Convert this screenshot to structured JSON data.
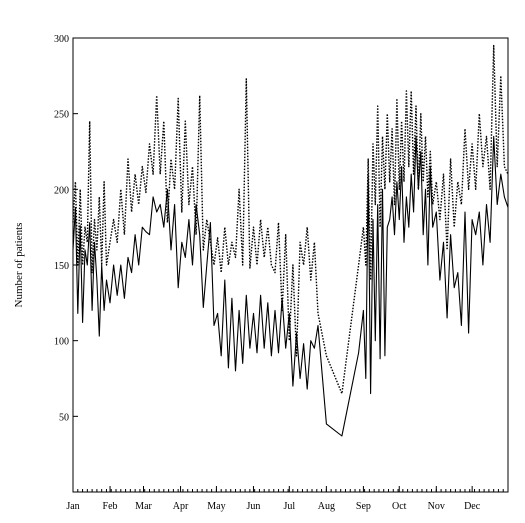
{
  "chart_data": {
    "type": "line",
    "title": "",
    "xlabel": "",
    "ylabel": "Number of patients",
    "ylim": [
      0,
      300
    ],
    "y_ticks": [
      50,
      100,
      150,
      200,
      250,
      300
    ],
    "x_ticks": [
      "Jan",
      "Feb",
      "Mar",
      "Apr",
      "May",
      "Jun",
      "Jul",
      "Aug",
      "Sep",
      "Oct",
      "Nov",
      "Dec"
    ],
    "grid": false,
    "legend": "none",
    "series": [
      {
        "style": "solid",
        "color": "#000000",
        "points": [
          [
            "Jan 1",
            160
          ],
          [
            "Jan 3",
            188
          ],
          [
            "Jan 5",
            118
          ],
          [
            "Jan 7",
            176
          ],
          [
            "Jan 9",
            112
          ],
          [
            "Jan 11",
            160
          ],
          [
            "Jan 13",
            150
          ],
          [
            "Jan 15",
            178
          ],
          [
            "Jan 17",
            120
          ],
          [
            "Jan 19",
            165
          ],
          [
            "Jan 21",
            140
          ],
          [
            "Jan 23",
            103
          ],
          [
            "Jan 25",
            150
          ],
          [
            "Jan 27",
            120
          ],
          [
            "Jan 29",
            140
          ],
          [
            "Feb 1",
            125
          ],
          [
            "Feb 4",
            150
          ],
          [
            "Feb 7",
            130
          ],
          [
            "Feb 10",
            150
          ],
          [
            "Feb 13",
            128
          ],
          [
            "Feb 16",
            155
          ],
          [
            "Feb 19",
            145
          ],
          [
            "Feb 22",
            170
          ],
          [
            "Feb 25",
            150
          ],
          [
            "Feb 28",
            175
          ],
          [
            "Mar 3",
            172
          ],
          [
            "Mar 6",
            170
          ],
          [
            "Mar 9",
            195
          ],
          [
            "Mar 12",
            185
          ],
          [
            "Mar 15",
            190
          ],
          [
            "Mar 18",
            175
          ],
          [
            "Mar 21",
            200
          ],
          [
            "Mar 24",
            160
          ],
          [
            "Mar 27",
            190
          ],
          [
            "Mar 30",
            135
          ],
          [
            "Apr 2",
            165
          ],
          [
            "Apr 5",
            155
          ],
          [
            "Apr 8",
            180
          ],
          [
            "Apr 11",
            150
          ],
          [
            "Apr 14",
            190
          ],
          [
            "Apr 17",
            170
          ],
          [
            "Apr 20",
            122
          ],
          [
            "Apr 23",
            150
          ],
          [
            "Apr 26",
            178
          ],
          [
            "Apr 29",
            110
          ],
          [
            "May 2",
            118
          ],
          [
            "May 5",
            90
          ],
          [
            "May 8",
            140
          ],
          [
            "May 11",
            82
          ],
          [
            "May 14",
            128
          ],
          [
            "May 17",
            80
          ],
          [
            "May 20",
            120
          ],
          [
            "May 23",
            85
          ],
          [
            "May 26",
            130
          ],
          [
            "May 29",
            95
          ],
          [
            "Jun 1",
            118
          ],
          [
            "Jun 4",
            92
          ],
          [
            "Jun 7",
            130
          ],
          [
            "Jun 10",
            95
          ],
          [
            "Jun 13",
            125
          ],
          [
            "Jun 16",
            90
          ],
          [
            "Jun 19",
            120
          ],
          [
            "Jun 22",
            92
          ],
          [
            "Jun 25",
            128
          ],
          [
            "Jun 28",
            95
          ],
          [
            "Jul 1",
            118
          ],
          [
            "Jul 4",
            70
          ],
          [
            "Jul 7",
            105
          ],
          [
            "Jul 10",
            75
          ],
          [
            "Jul 13",
            98
          ],
          [
            "Jul 16",
            68
          ],
          [
            "Jul 19",
            100
          ],
          [
            "Jul 22",
            95
          ],
          [
            "Jul 25",
            110
          ],
          [
            "Aug 1",
            45
          ],
          [
            "Aug 14",
            37
          ],
          [
            "Aug 28",
            92
          ],
          [
            "Sep 1",
            120
          ],
          [
            "Sep 3",
            75
          ],
          [
            "Sep 5",
            210
          ],
          [
            "Sep 7",
            65
          ],
          [
            "Sep 9",
            180
          ],
          [
            "Sep 11",
            100
          ],
          [
            "Sep 13",
            190
          ],
          [
            "Sep 15",
            88
          ],
          [
            "Sep 17",
            200
          ],
          [
            "Sep 19",
            90
          ],
          [
            "Sep 21",
            175
          ],
          [
            "Sep 23",
            180
          ],
          [
            "Sep 25",
            195
          ],
          [
            "Sep 27",
            170
          ],
          [
            "Sep 29",
            205
          ],
          [
            "Oct 1",
            180
          ],
          [
            "Oct 3",
            215
          ],
          [
            "Oct 5",
            165
          ],
          [
            "Oct 7",
            195
          ],
          [
            "Oct 9",
            175
          ],
          [
            "Oct 11",
            210
          ],
          [
            "Oct 13",
            185
          ],
          [
            "Oct 15",
            235
          ],
          [
            "Oct 17",
            200
          ],
          [
            "Oct 19",
            225
          ],
          [
            "Oct 21",
            170
          ],
          [
            "Oct 23",
            200
          ],
          [
            "Oct 25",
            150
          ],
          [
            "Oct 27",
            215
          ],
          [
            "Oct 29",
            175
          ],
          [
            "Nov 1",
            185
          ],
          [
            "Nov 4",
            140
          ],
          [
            "Nov 7",
            165
          ],
          [
            "Nov 10",
            115
          ],
          [
            "Nov 13",
            170
          ],
          [
            "Nov 16",
            135
          ],
          [
            "Nov 19",
            145
          ],
          [
            "Nov 22",
            110
          ],
          [
            "Nov 25",
            185
          ],
          [
            "Nov 28",
            105
          ],
          [
            "Dec 1",
            180
          ],
          [
            "Dec 4",
            170
          ],
          [
            "Dec 7",
            185
          ],
          [
            "Dec 10",
            150
          ],
          [
            "Dec 13",
            190
          ],
          [
            "Dec 16",
            165
          ],
          [
            "Dec 19",
            235
          ],
          [
            "Dec 22",
            190
          ],
          [
            "Dec 25",
            210
          ],
          [
            "Dec 28",
            195
          ],
          [
            "Dec 31",
            188
          ]
        ]
      },
      {
        "style": "dotted",
        "color": "#000000",
        "points": [
          [
            "Jan 1",
            178
          ],
          [
            "Jan 3",
            205
          ],
          [
            "Jan 5",
            150
          ],
          [
            "Jan 7",
            200
          ],
          [
            "Jan 9",
            150
          ],
          [
            "Jan 11",
            175
          ],
          [
            "Jan 13",
            165
          ],
          [
            "Jan 15",
            245
          ],
          [
            "Jan 17",
            145
          ],
          [
            "Jan 19",
            180
          ],
          [
            "Jan 21",
            160
          ],
          [
            "Jan 23",
            195
          ],
          [
            "Jan 25",
            150
          ],
          [
            "Jan 27",
            205
          ],
          [
            "Jan 29",
            150
          ],
          [
            "Feb 1",
            165
          ],
          [
            "Feb 4",
            180
          ],
          [
            "Feb 7",
            165
          ],
          [
            "Feb 10",
            200
          ],
          [
            "Feb 13",
            170
          ],
          [
            "Feb 16",
            220
          ],
          [
            "Feb 19",
            185
          ],
          [
            "Feb 22",
            210
          ],
          [
            "Feb 25",
            190
          ],
          [
            "Feb 28",
            215
          ],
          [
            "Mar 3",
            198
          ],
          [
            "Mar 6",
            230
          ],
          [
            "Mar 9",
            210
          ],
          [
            "Mar 12",
            262
          ],
          [
            "Mar 15",
            210
          ],
          [
            "Mar 18",
            245
          ],
          [
            "Mar 21",
            178
          ],
          [
            "Mar 24",
            220
          ],
          [
            "Mar 27",
            200
          ],
          [
            "Mar 30",
            260
          ],
          [
            "Apr 2",
            185
          ],
          [
            "Apr 5",
            245
          ],
          [
            "Apr 8",
            190
          ],
          [
            "Apr 11",
            215
          ],
          [
            "Apr 14",
            170
          ],
          [
            "Apr 17",
            262
          ],
          [
            "Apr 20",
            160
          ],
          [
            "Apr 23",
            180
          ],
          [
            "Apr 26",
            165
          ],
          [
            "Apr 29",
            150
          ],
          [
            "May 2",
            168
          ],
          [
            "May 5",
            145
          ],
          [
            "May 8",
            175
          ],
          [
            "May 11",
            150
          ],
          [
            "May 14",
            165
          ],
          [
            "May 17",
            155
          ],
          [
            "May 20",
            200
          ],
          [
            "May 23",
            150
          ],
          [
            "May 26",
            273
          ],
          [
            "May 29",
            148
          ],
          [
            "Jun 1",
            175
          ],
          [
            "Jun 4",
            150
          ],
          [
            "Jun 7",
            180
          ],
          [
            "Jun 10",
            155
          ],
          [
            "Jun 13",
            175
          ],
          [
            "Jun 16",
            150
          ],
          [
            "Jun 19",
            145
          ],
          [
            "Jun 22",
            178
          ],
          [
            "Jun 25",
            120
          ],
          [
            "Jun 28",
            170
          ],
          [
            "Jul 1",
            100
          ],
          [
            "Jul 4",
            150
          ],
          [
            "Jul 7",
            90
          ],
          [
            "Jul 10",
            165
          ],
          [
            "Jul 13",
            150
          ],
          [
            "Jul 16",
            175
          ],
          [
            "Jul 19",
            140
          ],
          [
            "Jul 22",
            165
          ],
          [
            "Jul 25",
            118
          ],
          [
            "Aug 1",
            90
          ],
          [
            "Aug 14",
            65
          ],
          [
            "Aug 28",
            150
          ],
          [
            "Sep 1",
            175
          ],
          [
            "Sep 3",
            150
          ],
          [
            "Sep 5",
            220
          ],
          [
            "Sep 7",
            140
          ],
          [
            "Sep 9",
            230
          ],
          [
            "Sep 11",
            190
          ],
          [
            "Sep 13",
            255
          ],
          [
            "Sep 15",
            175
          ],
          [
            "Sep 17",
            235
          ],
          [
            "Sep 19",
            200
          ],
          [
            "Sep 21",
            250
          ],
          [
            "Sep 23",
            205
          ],
          [
            "Sep 25",
            240
          ],
          [
            "Sep 27",
            190
          ],
          [
            "Sep 29",
            260
          ],
          [
            "Oct 1",
            200
          ],
          [
            "Oct 3",
            245
          ],
          [
            "Oct 5",
            205
          ],
          [
            "Oct 7",
            265
          ],
          [
            "Oct 9",
            215
          ],
          [
            "Oct 11",
            265
          ],
          [
            "Oct 13",
            210
          ],
          [
            "Oct 15",
            255
          ],
          [
            "Oct 17",
            200
          ],
          [
            "Oct 19",
            250
          ],
          [
            "Oct 21",
            205
          ],
          [
            "Oct 23",
            235
          ],
          [
            "Oct 25",
            195
          ],
          [
            "Oct 27",
            225
          ],
          [
            "Oct 29",
            190
          ],
          [
            "Nov 1",
            205
          ],
          [
            "Nov 4",
            180
          ],
          [
            "Nov 7",
            210
          ],
          [
            "Nov 10",
            160
          ],
          [
            "Nov 13",
            220
          ],
          [
            "Nov 16",
            175
          ],
          [
            "Nov 19",
            205
          ],
          [
            "Nov 22",
            190
          ],
          [
            "Nov 25",
            240
          ],
          [
            "Nov 28",
            200
          ],
          [
            "Dec 1",
            230
          ],
          [
            "Dec 4",
            200
          ],
          [
            "Dec 7",
            250
          ],
          [
            "Dec 10",
            215
          ],
          [
            "Dec 13",
            235
          ],
          [
            "Dec 16",
            200
          ],
          [
            "Dec 19",
            295
          ],
          [
            "Dec 22",
            215
          ],
          [
            "Dec 25",
            275
          ],
          [
            "Dec 28",
            215
          ],
          [
            "Dec 31",
            210
          ]
        ]
      }
    ]
  }
}
